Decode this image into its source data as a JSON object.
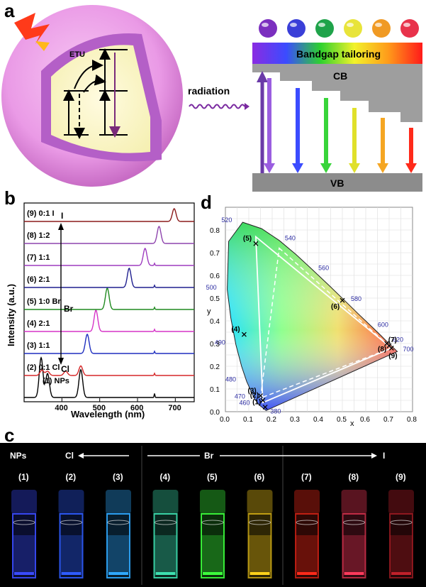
{
  "panel_labels": {
    "a": "a",
    "b": "b",
    "c": "c",
    "d": "d"
  },
  "panel_a": {
    "etu_label": "ETU",
    "radiation_label": "radiation",
    "bandgap_label": "Bandgap tailoring",
    "cb_label": "CB",
    "vb_label": "VB",
    "sphere_colors": [
      "#7b2fbf",
      "#3a3fd8",
      "#1fa34a",
      "#e8e43a",
      "#f09a24",
      "#e8324b"
    ],
    "arrow_colors": [
      "#9a5de0",
      "#3b4cff",
      "#38d43a",
      "#e0e02a",
      "#f5a623",
      "#ff2a1a"
    ]
  },
  "chart_data": [
    {
      "type": "line",
      "panel": "b",
      "xlabel": "Wavelength (nm)",
      "ylabel": "Intensity (a.u.)",
      "xlim": [
        300,
        750
      ],
      "xticks": [
        400,
        500,
        600,
        700
      ],
      "series": [
        {
          "name": "(1) NPs",
          "color": "#000000",
          "peaks": [
            [
              345,
              1.0
            ],
            [
              362,
              0.6
            ],
            [
              450,
              0.7
            ],
            [
              645,
              0.1
            ]
          ]
        },
        {
          "name": "(2) 0:1  Cl",
          "color": "#d62728",
          "peaks": [
            [
              347,
              0.25
            ],
            [
              362,
              0.2
            ],
            [
              410,
              0.2
            ],
            [
              450,
              0.45
            ],
            [
              645,
              0.1
            ]
          ]
        },
        {
          "name": "(3) 1:1",
          "color": "#1f2fbf",
          "peaks": [
            [
              467,
              0.9
            ],
            [
              645,
              0.1
            ]
          ]
        },
        {
          "name": "(4) 2:1",
          "color": "#d633c7",
          "peaks": [
            [
              490,
              1.0
            ],
            [
              645,
              0.1
            ]
          ]
        },
        {
          "name": "(5) 1:0  Br",
          "color": "#1f8a1f",
          "peaks": [
            [
              520,
              1.0
            ],
            [
              645,
              0.1
            ]
          ]
        },
        {
          "name": "(6) 2:1",
          "color": "#1f1f8f",
          "peaks": [
            [
              578,
              0.9
            ],
            [
              645,
              0.1
            ]
          ]
        },
        {
          "name": "(7) 1:1",
          "color": "#9d3bbf",
          "peaks": [
            [
              620,
              0.8
            ],
            [
              645,
              0.1
            ]
          ]
        },
        {
          "name": "(8) 1:2",
          "color": "#8e44ad",
          "peaks": [
            [
              657,
              0.8
            ]
          ]
        },
        {
          "name": "(9) 0:1  I",
          "color": "#8b1a1a",
          "peaks": [
            [
              697,
              0.6
            ]
          ]
        }
      ],
      "annotations": [
        "I",
        "Br",
        "Cl"
      ]
    },
    {
      "type": "scatter",
      "panel": "d",
      "xlabel": "x",
      "ylabel": "y",
      "xlim": [
        0.0,
        0.8
      ],
      "ylim": [
        0.0,
        0.9
      ],
      "xticks": [
        "0.0",
        "0.1",
        "0.2",
        "0.3",
        "0.4",
        "0.5",
        "0.6",
        "0.7",
        "0.8"
      ],
      "yticks": [
        "0.0",
        "0.1",
        "0.2",
        "0.3",
        "0.4",
        "0.5",
        "0.6",
        "0.7",
        "0.8"
      ],
      "wavelength_labels": [
        {
          "label": "380",
          "x": 0.174,
          "y": 0.005
        },
        {
          "label": "460",
          "x": 0.144,
          "y": 0.03
        },
        {
          "label": "470",
          "x": 0.124,
          "y": 0.058
        },
        {
          "label": "480",
          "x": 0.091,
          "y": 0.133
        },
        {
          "label": "490",
          "x": 0.045,
          "y": 0.295
        },
        {
          "label": "500",
          "x": 0.008,
          "y": 0.538
        },
        {
          "label": "520",
          "x": 0.074,
          "y": 0.834
        },
        {
          "label": "540",
          "x": 0.23,
          "y": 0.754
        },
        {
          "label": "560",
          "x": 0.373,
          "y": 0.624
        },
        {
          "label": "580",
          "x": 0.512,
          "y": 0.487
        },
        {
          "label": "600",
          "x": 0.627,
          "y": 0.373
        },
        {
          "label": "620",
          "x": 0.691,
          "y": 0.308
        },
        {
          "label": "700",
          "x": 0.735,
          "y": 0.265
        }
      ],
      "points": [
        {
          "label": "(1)",
          "x": 0.17,
          "y": 0.02
        },
        {
          "label": "(2)",
          "x": 0.16,
          "y": 0.05
        },
        {
          "label": "(3)",
          "x": 0.15,
          "y": 0.07
        },
        {
          "label": "(4)",
          "x": 0.08,
          "y": 0.34
        },
        {
          "label": "(5)",
          "x": 0.13,
          "y": 0.74
        },
        {
          "label": "(6)",
          "x": 0.5,
          "y": 0.49
        },
        {
          "label": "(7)",
          "x": 0.69,
          "y": 0.3
        },
        {
          "label": "(8)",
          "x": 0.7,
          "y": 0.29
        },
        {
          "label": "(9)",
          "x": 0.71,
          "y": 0.28
        }
      ],
      "triangle_solid": [
        [
          0.13,
          0.77
        ],
        [
          0.71,
          0.28
        ],
        [
          0.16,
          0.04
        ]
      ],
      "triangle_dashed": [
        [
          0.23,
          0.72
        ],
        [
          0.71,
          0.28
        ],
        [
          0.15,
          0.06
        ]
      ]
    }
  ],
  "panel_c": {
    "headers": {
      "nps": "NPs",
      "cl": "Cl",
      "br": "Br",
      "i": "I"
    },
    "vials": [
      {
        "label": "(1)",
        "color": "#3a4bff"
      },
      {
        "label": "(2)",
        "color": "#2f5cff"
      },
      {
        "label": "(3)",
        "color": "#2fa8ff"
      },
      {
        "label": "(4)",
        "color": "#3de0b0"
      },
      {
        "label": "(5)",
        "color": "#3cff3c"
      },
      {
        "label": "(6)",
        "color": "#ffd21a"
      },
      {
        "label": "(7)",
        "color": "#ff2a1a"
      },
      {
        "label": "(8)",
        "color": "#ff3a5c"
      },
      {
        "label": "(9)",
        "color": "#c0202a"
      }
    ]
  }
}
